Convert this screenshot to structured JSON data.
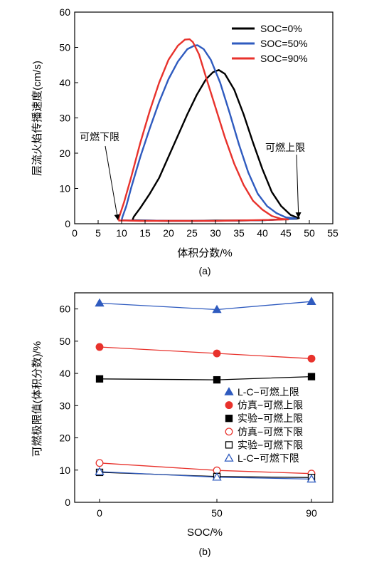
{
  "chart_data": [
    {
      "panel_label": "(a)",
      "type": "line",
      "xlabel": "体积分数/%",
      "ylabel": "层流火焰传播速度(cm/s)",
      "xlim": [
        0,
        55
      ],
      "ylim": [
        0,
        60
      ],
      "xticks": [
        0,
        5,
        10,
        15,
        20,
        25,
        30,
        35,
        40,
        45,
        50,
        55
      ],
      "yticks": [
        0,
        10,
        20,
        30,
        40,
        50,
        60
      ],
      "legend_position": "top-right",
      "grid": false,
      "series": [
        {
          "name": "SOC=0%",
          "color": "#000000",
          "x": [
            12.3,
            12.6,
            14,
            16,
            18,
            20,
            22,
            24,
            26,
            28,
            29.5,
            30.7,
            32,
            34,
            36,
            38,
            40,
            42,
            44,
            46,
            47.5,
            47.8,
            47.2,
            45,
            40,
            35,
            30,
            25,
            20,
            15,
            12.3
          ],
          "y": [
            1.0,
            2.0,
            4.5,
            8.5,
            13.0,
            19.0,
            25.0,
            31.0,
            36.5,
            41.0,
            43.0,
            43.6,
            42.5,
            38.0,
            31.0,
            23.0,
            15.5,
            9.0,
            5.0,
            2.5,
            1.7,
            1.6,
            1.4,
            1.3,
            1.0,
            0.9,
            0.9,
            0.8,
            0.8,
            0.9,
            1.0
          ]
        },
        {
          "name": "SOC=50%",
          "color": "#2f5bbf",
          "x": [
            10.0,
            10.2,
            11,
            12,
            14,
            16,
            18,
            20,
            22,
            24,
            25.5,
            26.2,
            27.5,
            29,
            31,
            33,
            35,
            37,
            39,
            41,
            43,
            45,
            46.5,
            47.2,
            46.5,
            44,
            40,
            35,
            30,
            25,
            20,
            15,
            12,
            10.0
          ],
          "y": [
            1.0,
            2.0,
            5.0,
            10.0,
            19.0,
            27.0,
            34.5,
            41.0,
            46.0,
            49.5,
            50.5,
            50.6,
            49.5,
            46.5,
            40.0,
            31.5,
            22.5,
            14.5,
            8.5,
            5.0,
            3.0,
            1.8,
            1.6,
            1.5,
            1.4,
            1.2,
            1.0,
            0.9,
            0.8,
            0.8,
            0.8,
            0.9,
            0.9,
            1.0
          ]
        },
        {
          "name": "SOC=90%",
          "color": "#e8322c",
          "x": [
            9.3,
            9.5,
            10.5,
            12,
            14,
            16,
            18,
            20,
            22,
            23.5,
            24.5,
            25.2,
            26.5,
            28,
            30,
            32,
            34,
            36,
            38,
            40,
            42,
            44,
            45.5,
            45.0,
            42,
            38,
            34,
            30,
            26,
            22,
            18,
            14,
            11,
            9.3
          ],
          "y": [
            0.9,
            2.0,
            6.0,
            13.0,
            23.0,
            32.0,
            40.0,
            46.5,
            50.5,
            52.2,
            52.3,
            51.5,
            48.0,
            41.5,
            33.0,
            24.5,
            17.0,
            11.0,
            6.5,
            4.0,
            2.2,
            1.4,
            1.2,
            1.2,
            1.1,
            1.0,
            0.9,
            0.8,
            0.8,
            0.8,
            0.8,
            0.8,
            0.9,
            0.9
          ]
        }
      ],
      "annotations": [
        {
          "text": "可燃下限",
          "points_to": [
            9.2,
            1.0
          ]
        },
        {
          "text": "可燃上限",
          "points_to": [
            47.7,
            1.6
          ]
        }
      ]
    },
    {
      "panel_label": "(b)",
      "type": "line",
      "xlabel": "SOC/%",
      "ylabel": "可燃极限值(体积分数)/%",
      "categories": [
        "0",
        "50",
        "90"
      ],
      "ylim": [
        0,
        65
      ],
      "yticks": [
        0,
        10,
        20,
        30,
        40,
        50,
        60
      ],
      "legend_position": "bottom-right",
      "grid": false,
      "series": [
        {
          "name": "L-C−可燃上限",
          "color": "#2f5bbf",
          "marker": "triangle-filled",
          "values": [
            61.8,
            59.8,
            62.3
          ]
        },
        {
          "name": "仿真−可燃上限",
          "color": "#e8322c",
          "marker": "circle-filled",
          "values": [
            48.2,
            46.2,
            44.6
          ]
        },
        {
          "name": "实验−可燃上限",
          "color": "#000000",
          "marker": "square-filled",
          "values": [
            38.3,
            38.0,
            39.0
          ]
        },
        {
          "name": "仿真−可燃下限",
          "color": "#e8322c",
          "marker": "circle-open",
          "values": [
            12.2,
            9.9,
            8.9
          ]
        },
        {
          "name": "实验−可燃下限",
          "color": "#000000",
          "marker": "square-open",
          "values": [
            9.3,
            8.0,
            7.7
          ]
        },
        {
          "name": "L-C−可燃下限",
          "color": "#2f5bbf",
          "marker": "triangle-open",
          "values": [
            9.5,
            7.8,
            7.2
          ]
        }
      ]
    }
  ]
}
